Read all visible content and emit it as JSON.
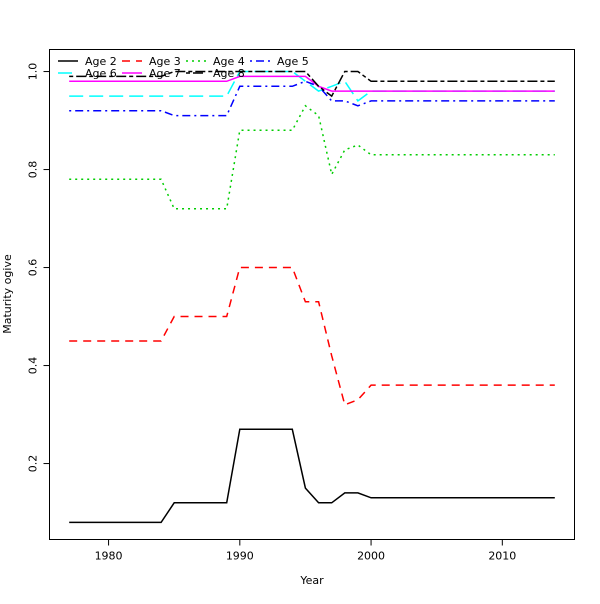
{
  "chart_data": {
    "type": "line",
    "title": "",
    "xlabel": "Year",
    "ylabel": "Maturity ogive",
    "xlim": [
      1975.5,
      2015.5
    ],
    "ylim": [
      0.045,
      1.045
    ],
    "x_ticks": [
      1980,
      1990,
      2000,
      2010
    ],
    "y_ticks": [
      0.2,
      0.4,
      0.6,
      0.8,
      1.0
    ],
    "grid": false,
    "legend_position": "top-left",
    "x": [
      1977,
      1978,
      1979,
      1980,
      1981,
      1982,
      1983,
      1984,
      1985,
      1986,
      1987,
      1988,
      1989,
      1990,
      1991,
      1992,
      1993,
      1994,
      1995,
      1996,
      1997,
      1998,
      1999,
      2000,
      2001,
      2002,
      2003,
      2004,
      2005,
      2006,
      2007,
      2008,
      2009,
      2010,
      2011,
      2012,
      2013,
      2014
    ],
    "series": [
      {
        "name": "Age 2",
        "color": "#000000",
        "dash": "solid",
        "values": [
          0.08,
          0.08,
          0.08,
          0.08,
          0.08,
          0.08,
          0.08,
          0.08,
          0.12,
          0.12,
          0.12,
          0.12,
          0.12,
          0.27,
          0.27,
          0.27,
          0.27,
          0.27,
          0.15,
          0.12,
          0.12,
          0.14,
          0.14,
          0.13,
          0.13,
          0.13,
          0.13,
          0.13,
          0.13,
          0.13,
          0.13,
          0.13,
          0.13,
          0.13,
          0.13,
          0.13,
          0.13,
          0.13
        ]
      },
      {
        "name": "Age 3",
        "color": "#ff0000",
        "dash": "dashed",
        "values": [
          0.45,
          0.45,
          0.45,
          0.45,
          0.45,
          0.45,
          0.45,
          0.45,
          0.5,
          0.5,
          0.5,
          0.5,
          0.5,
          0.6,
          0.6,
          0.6,
          0.6,
          0.6,
          0.53,
          0.53,
          0.42,
          0.32,
          0.33,
          0.36,
          0.36,
          0.36,
          0.36,
          0.36,
          0.36,
          0.36,
          0.36,
          0.36,
          0.36,
          0.36,
          0.36,
          0.36,
          0.36,
          0.36
        ]
      },
      {
        "name": "Age 4",
        "color": "#00cd00",
        "dash": "dotted",
        "values": [
          0.78,
          0.78,
          0.78,
          0.78,
          0.78,
          0.78,
          0.78,
          0.78,
          0.72,
          0.72,
          0.72,
          0.72,
          0.72,
          0.88,
          0.88,
          0.88,
          0.88,
          0.88,
          0.93,
          0.91,
          0.79,
          0.84,
          0.85,
          0.83,
          0.83,
          0.83,
          0.83,
          0.83,
          0.83,
          0.83,
          0.83,
          0.83,
          0.83,
          0.83,
          0.83,
          0.83,
          0.83,
          0.83
        ]
      },
      {
        "name": "Age 5",
        "color": "#0000ff",
        "dash": "dotdash",
        "values": [
          0.92,
          0.92,
          0.92,
          0.92,
          0.92,
          0.92,
          0.92,
          0.92,
          0.91,
          0.91,
          0.91,
          0.91,
          0.91,
          0.97,
          0.97,
          0.97,
          0.97,
          0.97,
          0.98,
          0.97,
          0.94,
          0.94,
          0.93,
          0.94,
          0.94,
          0.94,
          0.94,
          0.94,
          0.94,
          0.94,
          0.94,
          0.94,
          0.94,
          0.94,
          0.94,
          0.94,
          0.94,
          0.94
        ]
      },
      {
        "name": "Age 6",
        "color": "#00ffff",
        "dash": "longdash",
        "values": [
          0.95,
          0.95,
          0.95,
          0.95,
          0.95,
          0.95,
          0.95,
          0.95,
          0.95,
          0.95,
          0.95,
          0.95,
          0.95,
          1.0,
          1.0,
          1.0,
          1.0,
          1.0,
          0.98,
          0.96,
          0.97,
          0.98,
          0.94,
          0.96,
          0.96,
          0.96,
          0.96,
          0.96,
          0.96,
          0.96,
          0.96,
          0.96,
          0.96,
          0.96,
          0.96,
          0.96,
          0.96,
          0.96
        ]
      },
      {
        "name": "Age 7",
        "color": "#ff00ff",
        "dash": "solid",
        "values": [
          0.98,
          0.98,
          0.98,
          0.98,
          0.98,
          0.98,
          0.98,
          0.98,
          0.98,
          0.98,
          0.98,
          0.98,
          0.98,
          0.99,
          0.99,
          0.99,
          0.99,
          0.99,
          0.99,
          0.97,
          0.96,
          0.96,
          0.96,
          0.96,
          0.96,
          0.96,
          0.96,
          0.96,
          0.96,
          0.96,
          0.96,
          0.96,
          0.96,
          0.96,
          0.96,
          0.96,
          0.96,
          0.96
        ]
      },
      {
        "name": "Age 8",
        "color": "#000000",
        "dash": "twodash",
        "values": [
          0.99,
          0.99,
          0.99,
          0.99,
          0.99,
          0.99,
          0.99,
          0.99,
          1.0,
          1.0,
          1.0,
          1.0,
          1.0,
          1.0,
          1.0,
          1.0,
          1.0,
          1.0,
          1.0,
          0.97,
          0.95,
          1.0,
          1.0,
          0.98,
          0.98,
          0.98,
          0.98,
          0.98,
          0.98,
          0.98,
          0.98,
          0.98,
          0.98,
          0.98,
          0.98,
          0.98,
          0.98,
          0.98
        ]
      }
    ]
  }
}
